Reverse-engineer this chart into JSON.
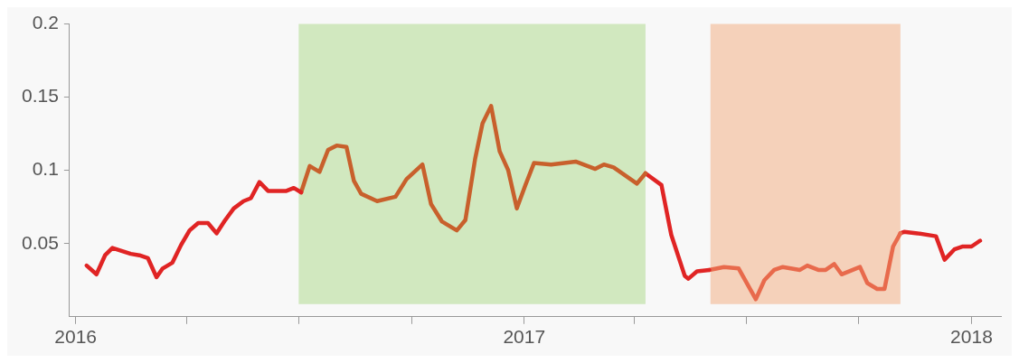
{
  "chart_data": {
    "type": "line",
    "xlim": [
      "2015-12-27",
      "2018-01-25"
    ],
    "ylim": [
      0,
      0.2
    ],
    "xticks": [
      {
        "value": "2016-01-01",
        "label": "2016"
      },
      {
        "value": "2016-04-01",
        "label": null
      },
      {
        "value": "2016-07-01",
        "label": null
      },
      {
        "value": "2016-10-01",
        "label": null
      },
      {
        "value": "2017-01-01",
        "label": "2017"
      },
      {
        "value": "2017-04-01",
        "label": null
      },
      {
        "value": "2017-07-01",
        "label": null
      },
      {
        "value": "2017-10-01",
        "label": null
      },
      {
        "value": "2018-01-01",
        "label": "2018"
      }
    ],
    "yticks": [
      0.05,
      0.1,
      0.15,
      0.2
    ],
    "grid": false,
    "legend": false,
    "line_style": "solid",
    "marker": "none",
    "bands": [
      {
        "axis": "x",
        "from": "2016-07-01",
        "to": "2017-04-10",
        "color": "#d1e8bf"
      },
      {
        "axis": "x",
        "from": "2017-06-02",
        "to": "2017-11-04",
        "color": "#f5d1ba"
      }
    ],
    "series": [
      {
        "color": "#e02424",
        "x": [
          "2016-01-10",
          "2016-01-18",
          "2016-01-25",
          "2016-01-31",
          "2016-02-15",
          "2016-02-22",
          "2016-02-29",
          "2016-03-07",
          "2016-03-12",
          "2016-03-20",
          "2016-03-27",
          "2016-04-03",
          "2016-04-10",
          "2016-04-18",
          "2016-04-25",
          "2016-05-02",
          "2016-05-09",
          "2016-05-17",
          "2016-05-23",
          "2016-05-30",
          "2016-06-06",
          "2016-06-14",
          "2016-06-21",
          "2016-06-27",
          "2016-07-03"
        ],
        "values": [
          0.035,
          0.029,
          0.042,
          0.047,
          0.043,
          0.042,
          0.04,
          0.027,
          0.033,
          0.037,
          0.049,
          0.059,
          0.064,
          0.064,
          0.057,
          0.066,
          0.074,
          0.079,
          0.081,
          0.092,
          0.086,
          0.086,
          0.086,
          0.088,
          0.085
        ]
      },
      {
        "color": "#c8602c",
        "x": [
          "2016-07-03",
          "2016-07-10",
          "2016-07-18",
          "2016-07-25",
          "2016-08-01",
          "2016-08-09",
          "2016-08-15",
          "2016-08-21",
          "2016-09-03",
          "2016-09-18",
          "2016-09-27",
          "2016-10-10",
          "2016-10-17",
          "2016-10-26",
          "2016-11-07",
          "2016-11-14",
          "2016-11-22",
          "2016-11-28",
          "2016-12-05",
          "2016-12-12",
          "2016-12-19",
          "2016-12-26",
          "2017-01-02",
          "2017-01-09",
          "2017-01-23",
          "2017-02-12",
          "2017-02-28",
          "2017-03-07",
          "2017-03-15",
          "2017-04-03",
          "2017-04-10"
        ],
        "values": [
          0.085,
          0.103,
          0.099,
          0.114,
          0.117,
          0.116,
          0.093,
          0.084,
          0.079,
          0.082,
          0.094,
          0.104,
          0.077,
          0.065,
          0.059,
          0.066,
          0.108,
          0.132,
          0.144,
          0.113,
          0.1,
          0.074,
          0.09,
          0.105,
          0.104,
          0.106,
          0.101,
          0.104,
          0.102,
          0.091,
          0.098
        ]
      },
      {
        "color": "#e02424",
        "x": [
          "2017-04-10",
          "2017-04-23",
          "2017-05-01",
          "2017-05-12",
          "2017-05-15",
          "2017-05-22",
          "2017-06-01"
        ],
        "values": [
          0.098,
          0.09,
          0.056,
          0.028,
          0.026,
          0.031,
          0.032
        ]
      },
      {
        "color": "#e86a4c",
        "x": [
          "2017-06-01",
          "2017-06-13",
          "2017-06-25",
          "2017-07-09",
          "2017-07-16",
          "2017-07-24",
          "2017-07-31",
          "2017-08-14",
          "2017-08-20",
          "2017-08-29",
          "2017-09-04",
          "2017-09-11",
          "2017-09-17",
          "2017-10-02",
          "2017-10-08",
          "2017-10-16",
          "2017-10-22",
          "2017-10-29",
          "2017-11-04"
        ],
        "values": [
          0.032,
          0.034,
          0.033,
          0.012,
          0.025,
          0.032,
          0.034,
          0.032,
          0.035,
          0.032,
          0.032,
          0.036,
          0.029,
          0.034,
          0.023,
          0.019,
          0.019,
          0.048,
          0.057
        ]
      },
      {
        "color": "#e02424",
        "x": [
          "2017-11-04",
          "2017-11-07",
          "2017-11-18",
          "2017-12-03",
          "2017-12-10",
          "2017-12-18",
          "2017-12-25",
          "2018-01-01",
          "2018-01-08"
        ],
        "values": [
          0.057,
          0.058,
          0.057,
          0.055,
          0.039,
          0.046,
          0.048,
          0.048,
          0.052
        ]
      }
    ]
  }
}
